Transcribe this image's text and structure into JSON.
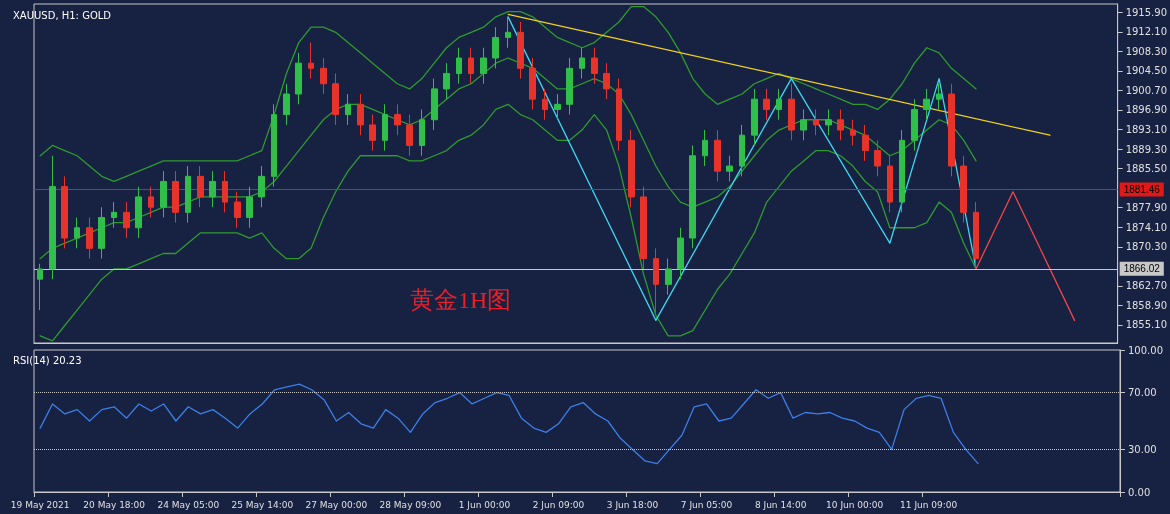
{
  "chart_data": [
    {
      "type": "candlestick",
      "title": "XAUUSD, H1: GOLD",
      "annotations": [
        "黄金1H图"
      ],
      "categories": [
        null,
        null,
        null,
        null,
        null,
        null,
        null,
        null,
        null,
        null,
        null,
        null,
        null,
        null,
        null,
        null,
        null,
        null,
        null,
        null,
        null,
        null,
        null,
        null,
        null,
        null,
        null,
        null,
        null,
        null,
        null,
        null,
        null,
        null,
        null,
        null,
        null,
        null,
        null,
        null,
        null,
        null,
        null,
        null,
        null,
        null,
        null,
        null,
        null,
        null,
        null,
        null,
        null,
        null,
        null,
        null,
        null,
        null,
        null,
        null,
        null,
        null,
        null,
        null,
        null,
        null,
        null,
        null,
        null,
        null,
        null,
        null,
        null,
        null,
        null,
        null,
        null,
        null,
        null,
        null,
        null,
        null,
        null,
        null,
        null,
        null,
        null,
        null
      ],
      "ohlc": [
        [
          1864,
          1867,
          1858,
          1866
        ],
        [
          1866,
          1888,
          1864,
          1882
        ],
        [
          1882,
          1884,
          1870,
          1872
        ],
        [
          1872,
          1876,
          1870,
          1874
        ],
        [
          1874,
          1876,
          1868,
          1870
        ],
        [
          1870,
          1878,
          1868,
          1876
        ],
        [
          1876,
          1879,
          1874,
          1877
        ],
        [
          1877,
          1879,
          1872,
          1874
        ],
        [
          1874,
          1882,
          1872,
          1880
        ],
        [
          1880,
          1882,
          1876,
          1878
        ],
        [
          1878,
          1885,
          1876,
          1883
        ],
        [
          1883,
          1885,
          1875,
          1877
        ],
        [
          1877,
          1886,
          1875,
          1884
        ],
        [
          1884,
          1886,
          1878,
          1880
        ],
        [
          1880,
          1885,
          1878,
          1883
        ],
        [
          1883,
          1885,
          1877,
          1879
        ],
        [
          1879,
          1881,
          1874,
          1876
        ],
        [
          1876,
          1882,
          1874,
          1880
        ],
        [
          1880,
          1886,
          1878,
          1884
        ],
        [
          1884,
          1898,
          1882,
          1896
        ],
        [
          1896,
          1902,
          1894,
          1900
        ],
        [
          1900,
          1908,
          1898,
          1906
        ],
        [
          1906,
          1910,
          1903,
          1905
        ],
        [
          1905,
          1907,
          1900,
          1902
        ],
        [
          1902,
          1904,
          1894,
          1896
        ],
        [
          1896,
          1900,
          1894,
          1898
        ],
        [
          1898,
          1900,
          1892,
          1894
        ],
        [
          1894,
          1896,
          1889,
          1891
        ],
        [
          1891,
          1898,
          1889,
          1896
        ],
        [
          1896,
          1898,
          1892,
          1894
        ],
        [
          1894,
          1896,
          1888,
          1890
        ],
        [
          1890,
          1897,
          1888,
          1895
        ],
        [
          1895,
          1903,
          1893,
          1901
        ],
        [
          1901,
          1906,
          1899,
          1904
        ],
        [
          1904,
          1909,
          1902,
          1907
        ],
        [
          1907,
          1909,
          1902,
          1904
        ],
        [
          1904,
          1909,
          1902,
          1907
        ],
        [
          1907,
          1913,
          1905,
          1911
        ],
        [
          1911,
          1915,
          1909,
          1912
        ],
        [
          1912,
          1914,
          1903,
          1905
        ],
        [
          1905,
          1907,
          1897,
          1899
        ],
        [
          1899,
          1901,
          1895,
          1897
        ],
        [
          1897,
          1900,
          1895,
          1898
        ],
        [
          1898,
          1907,
          1896,
          1905
        ],
        [
          1905,
          1909,
          1903,
          1907
        ],
        [
          1907,
          1909,
          1902,
          1904
        ],
        [
          1904,
          1906,
          1899,
          1901
        ],
        [
          1901,
          1903,
          1889,
          1891
        ],
        [
          1891,
          1893,
          1878,
          1880
        ],
        [
          1880,
          1882,
          1866,
          1868
        ],
        [
          1868,
          1870,
          1857,
          1863
        ],
        [
          1863,
          1868,
          1861,
          1866
        ],
        [
          1866,
          1874,
          1864,
          1872
        ],
        [
          1872,
          1890,
          1870,
          1888
        ],
        [
          1888,
          1893,
          1886,
          1891
        ],
        [
          1891,
          1893,
          1883,
          1885
        ],
        [
          1885,
          1888,
          1883,
          1886
        ],
        [
          1886,
          1894,
          1884,
          1892
        ],
        [
          1892,
          1901,
          1890,
          1899
        ],
        [
          1899,
          1901,
          1895,
          1897
        ],
        [
          1897,
          1901,
          1895,
          1899
        ],
        [
          1899,
          1902,
          1891,
          1893
        ],
        [
          1893,
          1897,
          1891,
          1895
        ],
        [
          1895,
          1897,
          1892,
          1894
        ],
        [
          1894,
          1897,
          1892,
          1895
        ],
        [
          1895,
          1897,
          1891,
          1893
        ],
        [
          1893,
          1895,
          1890,
          1892
        ],
        [
          1892,
          1894,
          1887,
          1889
        ],
        [
          1889,
          1891,
          1884,
          1886
        ],
        [
          1886,
          1888,
          1877,
          1879
        ],
        [
          1879,
          1893,
          1877,
          1891
        ],
        [
          1891,
          1899,
          1889,
          1897
        ],
        [
          1897,
          1901,
          1895,
          1899
        ],
        [
          1899,
          1902,
          1897,
          1900
        ],
        [
          1900,
          1902,
          1884,
          1886
        ],
        [
          1886,
          1888,
          1875,
          1877
        ],
        [
          1877,
          1879,
          1866,
          1868
        ],
        null,
        null,
        null,
        null,
        null,
        null,
        null,
        null,
        null,
        null,
        null
      ],
      "series": [
        {
          "type": "line",
          "color": "#2f9a2f",
          "values": [
            1888,
            1890,
            1889,
            1888,
            1886,
            1884,
            1883,
            1884,
            1885,
            1886,
            1887,
            1887,
            1887,
            1887,
            1887,
            1887,
            1887,
            1888,
            1889,
            1896,
            1904,
            1910,
            1913,
            1913,
            1912,
            1910,
            1908,
            1906,
            1904,
            1902,
            1901,
            1903,
            1906,
            1909,
            1911,
            1912,
            1913,
            1915,
            1916,
            1916,
            1915,
            1913,
            1911,
            1910,
            1909,
            1910,
            1912,
            1914,
            1917,
            1917,
            1915,
            1912,
            1908,
            1903,
            1900,
            1898,
            1899,
            1900,
            1902,
            1903,
            1904,
            1903,
            1902,
            1901,
            1900,
            1899,
            1898,
            1898,
            1897,
            1899,
            1902,
            1906,
            1909,
            1908,
            1905,
            1903,
            1901,
            null,
            null,
            null,
            null,
            null,
            null,
            null,
            null,
            null,
            null,
            null
          ]
        },
        {
          "type": "line",
          "color": "#2f9a2f",
          "values": [
            1868,
            1870,
            1871,
            1872,
            1873,
            1874,
            1875,
            1875,
            1876,
            1877,
            1878,
            1878,
            1879,
            1880,
            1880,
            1880,
            1880,
            1880,
            1881,
            1883,
            1886,
            1889,
            1892,
            1895,
            1897,
            1898,
            1898,
            1897,
            1896,
            1895,
            1894,
            1895,
            1897,
            1899,
            1901,
            1902,
            1904,
            1906,
            1907,
            1906,
            1905,
            1903,
            1901,
            1901,
            1902,
            1903,
            1902,
            1900,
            1896,
            1891,
            1886,
            1882,
            1879,
            1878,
            1879,
            1880,
            1882,
            1885,
            1888,
            1891,
            1893,
            1894,
            1895,
            1895,
            1895,
            1894,
            1893,
            1892,
            1890,
            1888,
            1889,
            1891,
            1893,
            1895,
            1894,
            1891,
            1887,
            null,
            null,
            null,
            null,
            null,
            null,
            null,
            null,
            null,
            null,
            null
          ]
        },
        {
          "type": "line",
          "color": "#2f9a2f",
          "values": [
            1853,
            1852,
            1855,
            1858,
            1861,
            1864,
            1866,
            1866,
            1867,
            1868,
            1869,
            1869,
            1871,
            1873,
            1873,
            1873,
            1873,
            1872,
            1873,
            1870,
            1868,
            1868,
            1870,
            1876,
            1881,
            1885,
            1888,
            1888,
            1888,
            1888,
            1887,
            1887,
            1888,
            1889,
            1891,
            1892,
            1894,
            1897,
            1898,
            1896,
            1895,
            1893,
            1891,
            1891,
            1893,
            1896,
            1893,
            1886,
            1876,
            1865,
            1857,
            1853,
            1853,
            1854,
            1858,
            1862,
            1865,
            1869,
            1873,
            1879,
            1882,
            1885,
            1887,
            1889,
            1889,
            1888,
            1886,
            1883,
            1881,
            1874,
            1874,
            1874,
            1875,
            1879,
            1877,
            1871,
            1866,
            null,
            null,
            null,
            null,
            null,
            null,
            null,
            null,
            null,
            null,
            null
          ]
        },
        {
          "type": "line",
          "color": "#f2d21b",
          "values": [
            null,
            null,
            null,
            null,
            null,
            null,
            null,
            null,
            null,
            null,
            null,
            null,
            null,
            null,
            null,
            null,
            null,
            null,
            null,
            null,
            null,
            null,
            null,
            null,
            null,
            null,
            null,
            null,
            null,
            null,
            null,
            null,
            null,
            null,
            null,
            null,
            null,
            null,
            1915.5,
            null,
            null,
            null,
            null,
            null,
            null,
            null,
            null,
            null,
            null,
            null,
            null,
            null,
            null,
            null,
            null,
            null,
            null,
            null,
            null,
            null,
            null,
            null,
            null,
            null,
            null,
            null,
            null,
            null,
            null,
            null,
            null,
            null,
            null,
            null,
            null,
            null,
            null,
            null,
            null,
            null,
            null,
            null,
            1892,
            null,
            null,
            null,
            null,
            null
          ]
        },
        {
          "type": "line",
          "color": "#3fd6f0",
          "values": [
            null,
            null,
            null,
            null,
            null,
            null,
            null,
            null,
            null,
            null,
            null,
            null,
            null,
            null,
            null,
            null,
            null,
            null,
            null,
            null,
            null,
            null,
            null,
            null,
            null,
            null,
            null,
            null,
            null,
            null,
            null,
            null,
            null,
            null,
            null,
            null,
            null,
            null,
            1915,
            null,
            null,
            null,
            null,
            null,
            null,
            null,
            null,
            null,
            null,
            null,
            1856,
            null,
            null,
            null,
            null,
            null,
            null,
            null,
            null,
            null,
            null,
            1903,
            null,
            null,
            null,
            null,
            null,
            null,
            null,
            1871,
            null,
            null,
            null,
            1903,
            null,
            null,
            1866,
            null,
            null,
            null,
            null,
            null,
            null,
            null,
            null,
            null,
            null,
            null
          ]
        },
        {
          "type": "line",
          "color": "#f04848",
          "values": [
            null,
            null,
            null,
            null,
            null,
            null,
            null,
            null,
            null,
            null,
            null,
            null,
            null,
            null,
            null,
            null,
            null,
            null,
            null,
            null,
            null,
            null,
            null,
            null,
            null,
            null,
            null,
            null,
            null,
            null,
            null,
            null,
            null,
            null,
            null,
            null,
            null,
            null,
            null,
            null,
            null,
            null,
            null,
            null,
            null,
            null,
            null,
            null,
            null,
            null,
            null,
            null,
            null,
            null,
            null,
            null,
            null,
            null,
            null,
            null,
            null,
            null,
            null,
            null,
            null,
            null,
            null,
            null,
            null,
            null,
            null,
            null,
            null,
            null,
            null,
            null,
            1866,
            null,
            null,
            1881,
            null,
            null,
            null,
            null,
            1856,
            null,
            null,
            null
          ]
        }
      ],
      "ylim": [
        1851.6,
        1917.5
      ],
      "yticks": [
        {
          "value": 1855.1,
          "label": "1855.10"
        },
        {
          "value": 1858.9,
          "label": "1858.90"
        },
        {
          "value": 1862.7,
          "label": "1862.70"
        },
        {
          "value": 1870.3,
          "label": "1870.30"
        },
        {
          "value": 1874.1,
          "label": "1874.10"
        },
        {
          "value": 1877.9,
          "label": "1877.90"
        },
        {
          "value": 1885.5,
          "label": "1885.50"
        },
        {
          "value": 1889.3,
          "label": "1889.30"
        },
        {
          "value": 1893.1,
          "label": "1893.10"
        },
        {
          "value": 1896.9,
          "label": "1896.90"
        },
        {
          "value": 1900.7,
          "label": "1900.70"
        },
        {
          "value": 1904.5,
          "label": "1904.50"
        },
        {
          "value": 1908.3,
          "label": "1908.30"
        },
        {
          "value": 1912.1,
          "label": "1912.10"
        },
        {
          "value": 1915.9,
          "label": "1915.90"
        }
      ],
      "ref_lines": [
        {
          "axis": "y",
          "value": 1881.46,
          "label": "1881.46",
          "color": "#e01818"
        },
        {
          "axis": "y",
          "value": 1866.02,
          "label": "1866.02",
          "color": "#c8c8c8"
        }
      ],
      "tick_labels": "y",
      "marker": "none",
      "grid": false
    },
    {
      "type": "line",
      "title": "RSI(14) 20.23",
      "categories": [
        "19 May 2021",
        null,
        null,
        null,
        null,
        null,
        "20 May 18:00",
        null,
        null,
        null,
        null,
        null,
        "24 May 05:00",
        null,
        null,
        null,
        null,
        null,
        "25 May 14:00",
        null,
        null,
        null,
        null,
        null,
        "27 May 00:00",
        null,
        null,
        null,
        null,
        null,
        "28 May 09:00",
        null,
        null,
        null,
        null,
        null,
        "1 Jun 00:00",
        null,
        null,
        null,
        null,
        null,
        "2 Jun 09:00",
        null,
        null,
        null,
        null,
        null,
        "3 Jun 18:00",
        null,
        null,
        null,
        null,
        null,
        "7 Jun 05:00",
        null,
        null,
        null,
        null,
        null,
        "8 Jun 14:00",
        null,
        null,
        null,
        null,
        null,
        "10 Jun 00:00",
        null,
        null,
        null,
        null,
        null,
        "11 Jun 09:00",
        null,
        null,
        null,
        null,
        null,
        null,
        null,
        null,
        null,
        null,
        null,
        null,
        null,
        null,
        null
      ],
      "series": [
        {
          "color": "#3d7fe6",
          "values": [
            45,
            62,
            55,
            58,
            50,
            58,
            60,
            52,
            62,
            57,
            62,
            50,
            60,
            55,
            58,
            52,
            45,
            55,
            62,
            72,
            74,
            76,
            72,
            65,
            50,
            56,
            48,
            45,
            58,
            52,
            42,
            55,
            63,
            66,
            70,
            62,
            66,
            70,
            68,
            52,
            45,
            42,
            48,
            60,
            63,
            55,
            50,
            38,
            30,
            22,
            20,
            30,
            40,
            60,
            62,
            50,
            52,
            62,
            72,
            66,
            70,
            52,
            56,
            55,
            56,
            52,
            50,
            45,
            42,
            30,
            58,
            66,
            68,
            66,
            42,
            30,
            20,
            null,
            null,
            null,
            null,
            null,
            null,
            null,
            null,
            null,
            null,
            null
          ]
        }
      ],
      "ylim": [
        0,
        100
      ],
      "yticks": [
        {
          "value": 0,
          "label": "0.00"
        },
        {
          "value": 30,
          "label": "30.00"
        },
        {
          "value": 70,
          "label": "70.00"
        },
        {
          "value": 100,
          "label": "100.00"
        }
      ],
      "ref_lines": [
        {
          "axis": "y",
          "value": 30,
          "line_style": "dotted",
          "color": "#c8c8c8"
        },
        {
          "axis": "y",
          "value": 70,
          "line_style": "dotted",
          "color": "#c8c8c8"
        }
      ],
      "marker": "none",
      "grid": false
    }
  ]
}
